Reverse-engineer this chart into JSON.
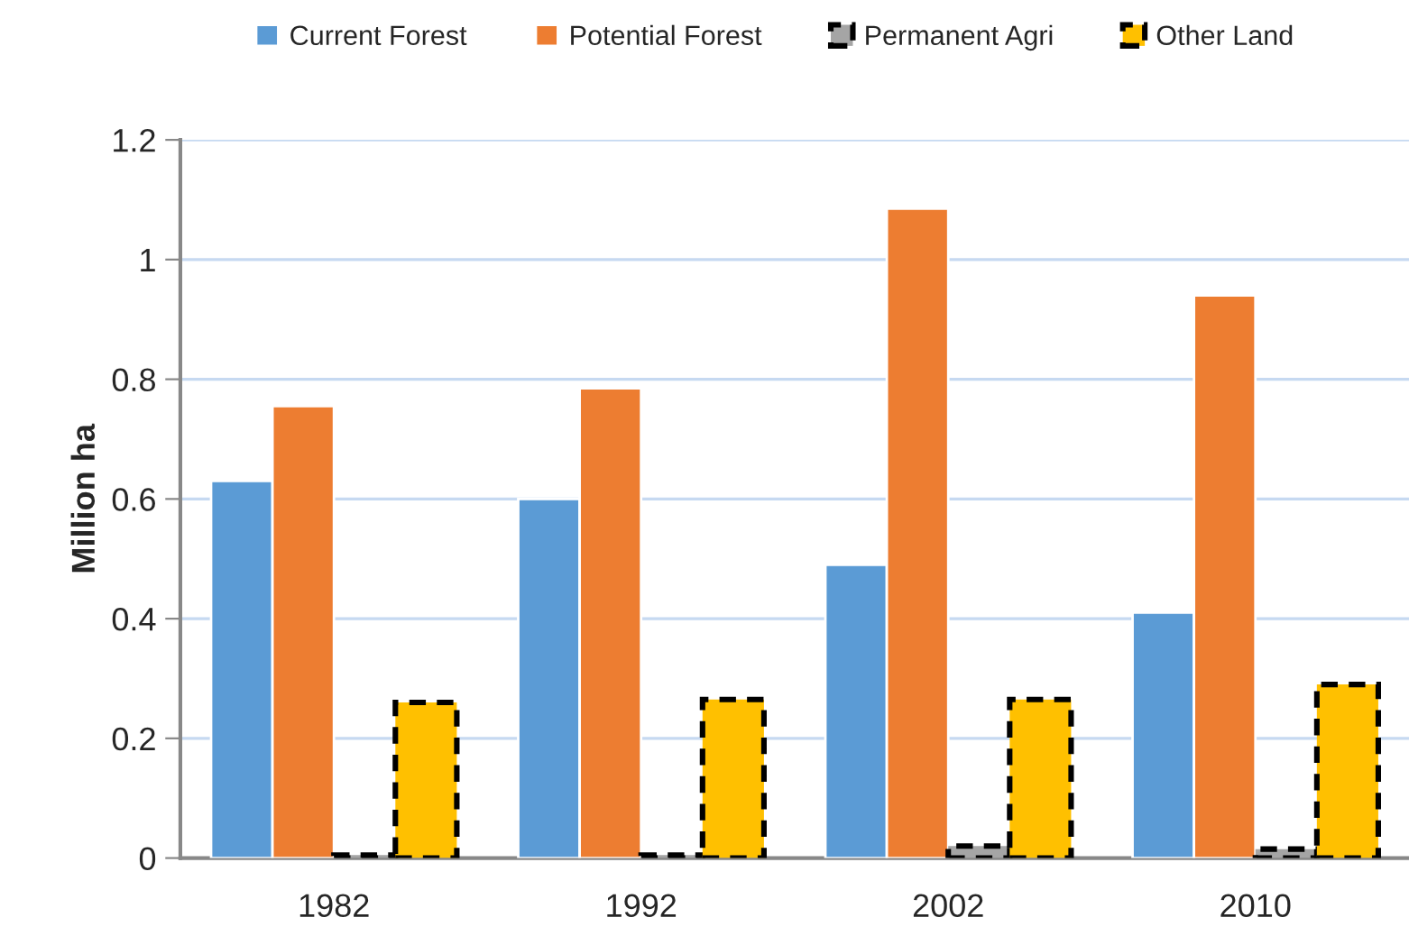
{
  "chart_data": {
    "type": "bar",
    "ylabel": "Million ha",
    "categories": [
      "1982",
      "1992",
      "2002",
      "2010"
    ],
    "series": [
      {
        "name": "Current Forest",
        "color": "#5b9bd5",
        "values": [
          0.63,
          0.6,
          0.49,
          0.41
        ]
      },
      {
        "name": "Potential Forest",
        "color": "#ed7d31",
        "values": [
          0.755,
          0.785,
          1.085,
          0.94
        ]
      },
      {
        "name": "Permanent Agri",
        "color": "#a5a5a5",
        "values": [
          0.005,
          0.005,
          0.02,
          0.015
        ],
        "line_style": "dashed"
      },
      {
        "name": "Other Land",
        "color": "#ffc000",
        "values": [
          0.26,
          0.265,
          0.265,
          0.29
        ],
        "line_style": "dashed"
      }
    ],
    "ylim": [
      0,
      1.2
    ],
    "yticks": [
      {
        "value": 0,
        "label": "0"
      },
      0.2,
      0.4,
      0.6,
      0.8,
      {
        "value": 1,
        "label": "1"
      },
      1.2
    ],
    "grid": "y",
    "legend": "top"
  }
}
